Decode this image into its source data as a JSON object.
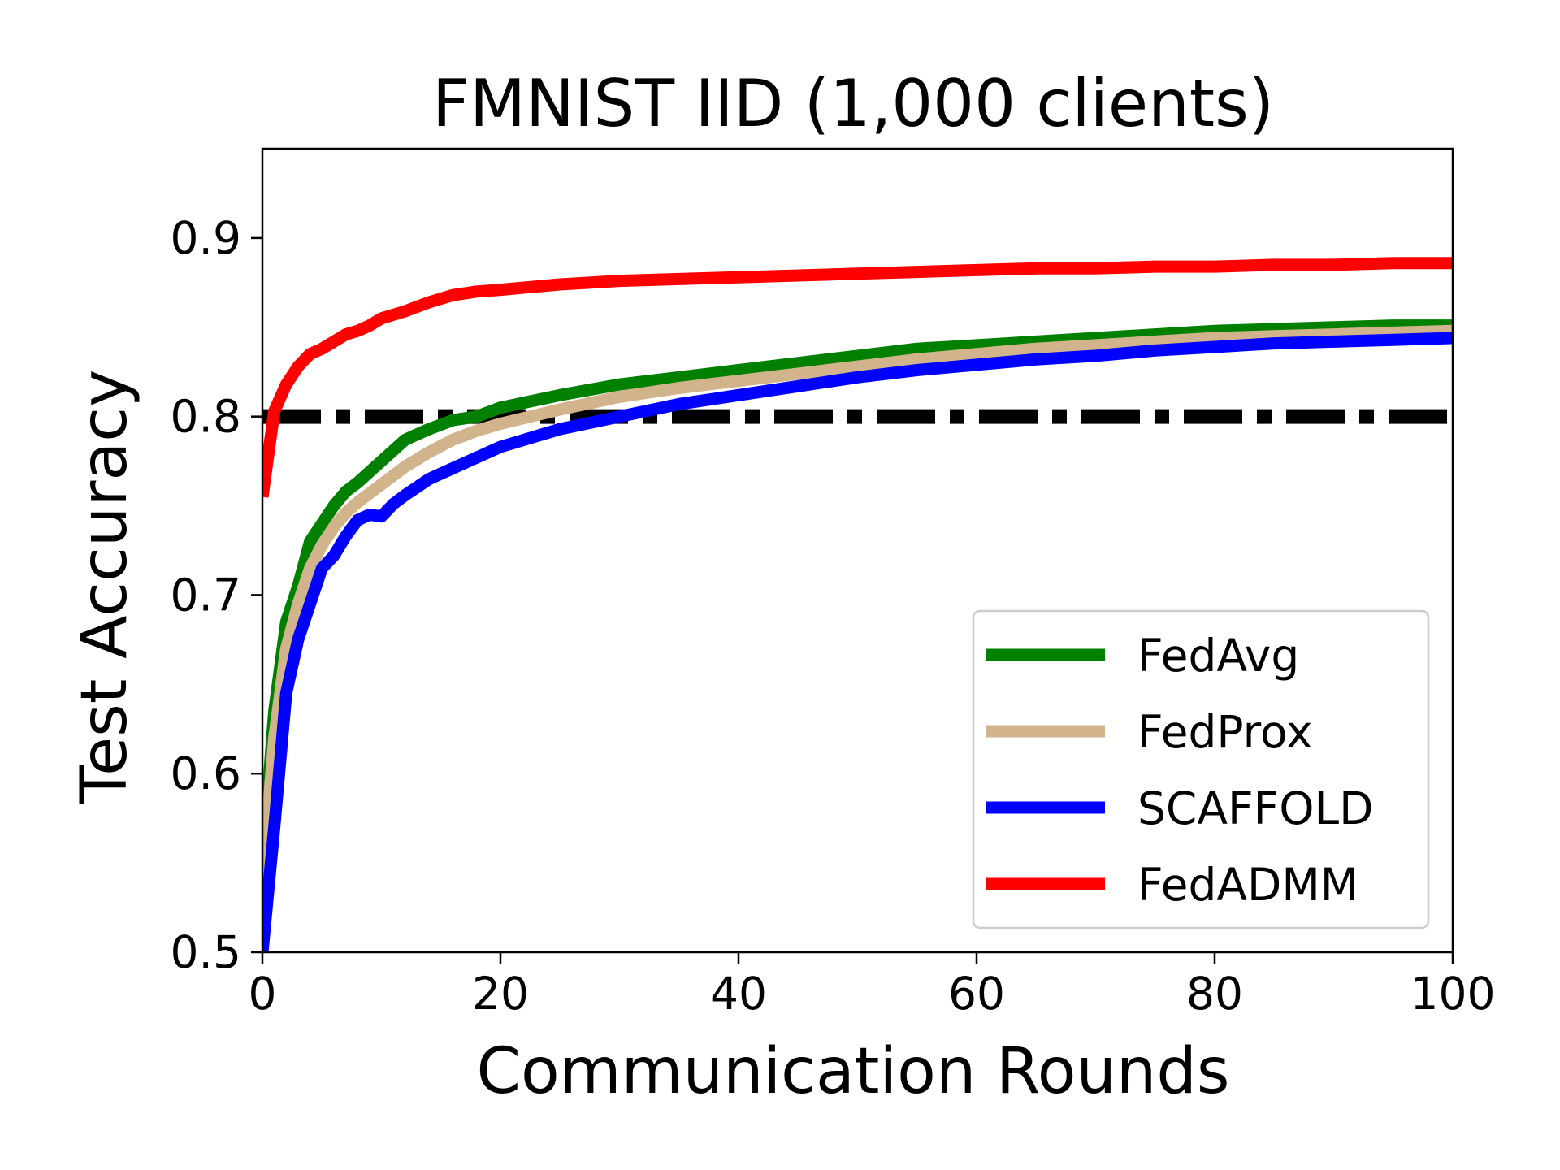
{
  "chart_data": {
    "type": "line",
    "title": "FMNIST IID (1,000 clients)",
    "xlabel": "Communication Rounds",
    "ylabel": "Test Accuracy",
    "xlim": [
      0,
      100
    ],
    "ylim": [
      0.5,
      0.95
    ],
    "xticks": [
      0,
      20,
      40,
      60,
      80,
      100
    ],
    "xtick_labels": [
      "0",
      "20",
      "40",
      "60",
      "80",
      "100"
    ],
    "yticks": [
      0.5,
      0.6,
      0.7,
      0.8,
      0.9
    ],
    "ytick_labels": [
      "0.5",
      "0.6",
      "0.7",
      "0.8",
      "0.9"
    ],
    "grid": false,
    "legend_position": "lower-right",
    "series": [
      {
        "name": "FedAvg",
        "color": "#008000",
        "x": [
          0,
          1,
          2,
          3,
          4,
          5,
          6,
          7,
          8,
          10,
          12,
          14,
          16,
          18,
          20,
          25,
          30,
          35,
          40,
          45,
          50,
          55,
          60,
          65,
          70,
          75,
          80,
          85,
          90,
          95,
          100
        ],
        "y": [
          0.55,
          0.635,
          0.685,
          0.705,
          0.73,
          0.74,
          0.75,
          0.758,
          0.763,
          0.775,
          0.787,
          0.793,
          0.798,
          0.8,
          0.805,
          0.812,
          0.818,
          0.822,
          0.826,
          0.83,
          0.834,
          0.838,
          0.84,
          0.842,
          0.844,
          0.846,
          0.848,
          0.849,
          0.85,
          0.851,
          0.851
        ]
      },
      {
        "name": "FedProx",
        "color": "#d2b48c",
        "x": [
          0,
          1,
          2,
          3,
          4,
          5,
          6,
          7,
          8,
          10,
          12,
          14,
          16,
          18,
          20,
          25,
          30,
          35,
          40,
          45,
          50,
          55,
          60,
          65,
          70,
          75,
          80,
          85,
          90,
          95,
          100
        ],
        "y": [
          0.54,
          0.62,
          0.67,
          0.695,
          0.715,
          0.728,
          0.738,
          0.746,
          0.752,
          0.762,
          0.772,
          0.78,
          0.787,
          0.792,
          0.796,
          0.804,
          0.811,
          0.816,
          0.82,
          0.824,
          0.828,
          0.832,
          0.835,
          0.838,
          0.84,
          0.842,
          0.844,
          0.845,
          0.846,
          0.847,
          0.848
        ]
      },
      {
        "name": "SCAFFOLD",
        "color": "#0000ff",
        "x": [
          0,
          1,
          2,
          3,
          4,
          5,
          6,
          7,
          8,
          9,
          10,
          11,
          12,
          14,
          16,
          18,
          20,
          25,
          30,
          35,
          40,
          45,
          50,
          55,
          60,
          65,
          70,
          75,
          80,
          85,
          90,
          95,
          100
        ],
        "y": [
          0.5,
          0.57,
          0.645,
          0.675,
          0.695,
          0.715,
          0.722,
          0.733,
          0.742,
          0.745,
          0.744,
          0.751,
          0.756,
          0.765,
          0.771,
          0.777,
          0.783,
          0.793,
          0.8,
          0.807,
          0.812,
          0.817,
          0.822,
          0.826,
          0.829,
          0.832,
          0.834,
          0.837,
          0.839,
          0.841,
          0.842,
          0.843,
          0.844
        ]
      },
      {
        "name": "FedADMM",
        "color": "#ff0000",
        "x": [
          0,
          1,
          2,
          3,
          4,
          5,
          6,
          7,
          8,
          9,
          10,
          12,
          14,
          16,
          18,
          20,
          25,
          30,
          35,
          40,
          45,
          50,
          55,
          60,
          65,
          70,
          75,
          80,
          85,
          90,
          95,
          100
        ],
        "y": [
          0.755,
          0.803,
          0.818,
          0.828,
          0.835,
          0.838,
          0.842,
          0.846,
          0.848,
          0.851,
          0.855,
          0.859,
          0.864,
          0.868,
          0.87,
          0.871,
          0.874,
          0.876,
          0.877,
          0.878,
          0.879,
          0.88,
          0.881,
          0.882,
          0.883,
          0.883,
          0.884,
          0.884,
          0.885,
          0.885,
          0.886,
          0.886
        ]
      }
    ],
    "reference_line": {
      "y": 0.8,
      "color": "#000000",
      "style": "dash-dot"
    }
  }
}
